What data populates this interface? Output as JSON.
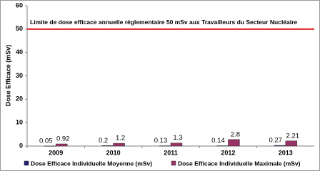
{
  "chart_data": {
    "type": "bar",
    "y_label": "Dose Efficace (mSv)",
    "categories": [
      "2009",
      "2010",
      "2011",
      "2012",
      "2013"
    ],
    "series": [
      {
        "name": "Dose Efficace Individuelle Moyenne (mSv)",
        "color": "#1f1f78",
        "values": [
          0.05,
          0.2,
          0.13,
          0.14,
          0.27
        ]
      },
      {
        "name": "Dose Efficace Individuelle Maximale (mSv)",
        "color": "#993366",
        "values": [
          0.92,
          1.2,
          1.3,
          2.8,
          2.21
        ]
      }
    ],
    "ylim": [
      0,
      60
    ],
    "yticks": [
      0,
      10,
      20,
      30,
      40,
      50,
      60
    ],
    "data_labels": true,
    "limit_line": {
      "value": 50,
      "label": "Limite de dose efficace annuelle réglementaire 50 mSv aux Travailleurs du Secteur Nucléaire",
      "color": "#e02020"
    },
    "legend": "bottom"
  }
}
